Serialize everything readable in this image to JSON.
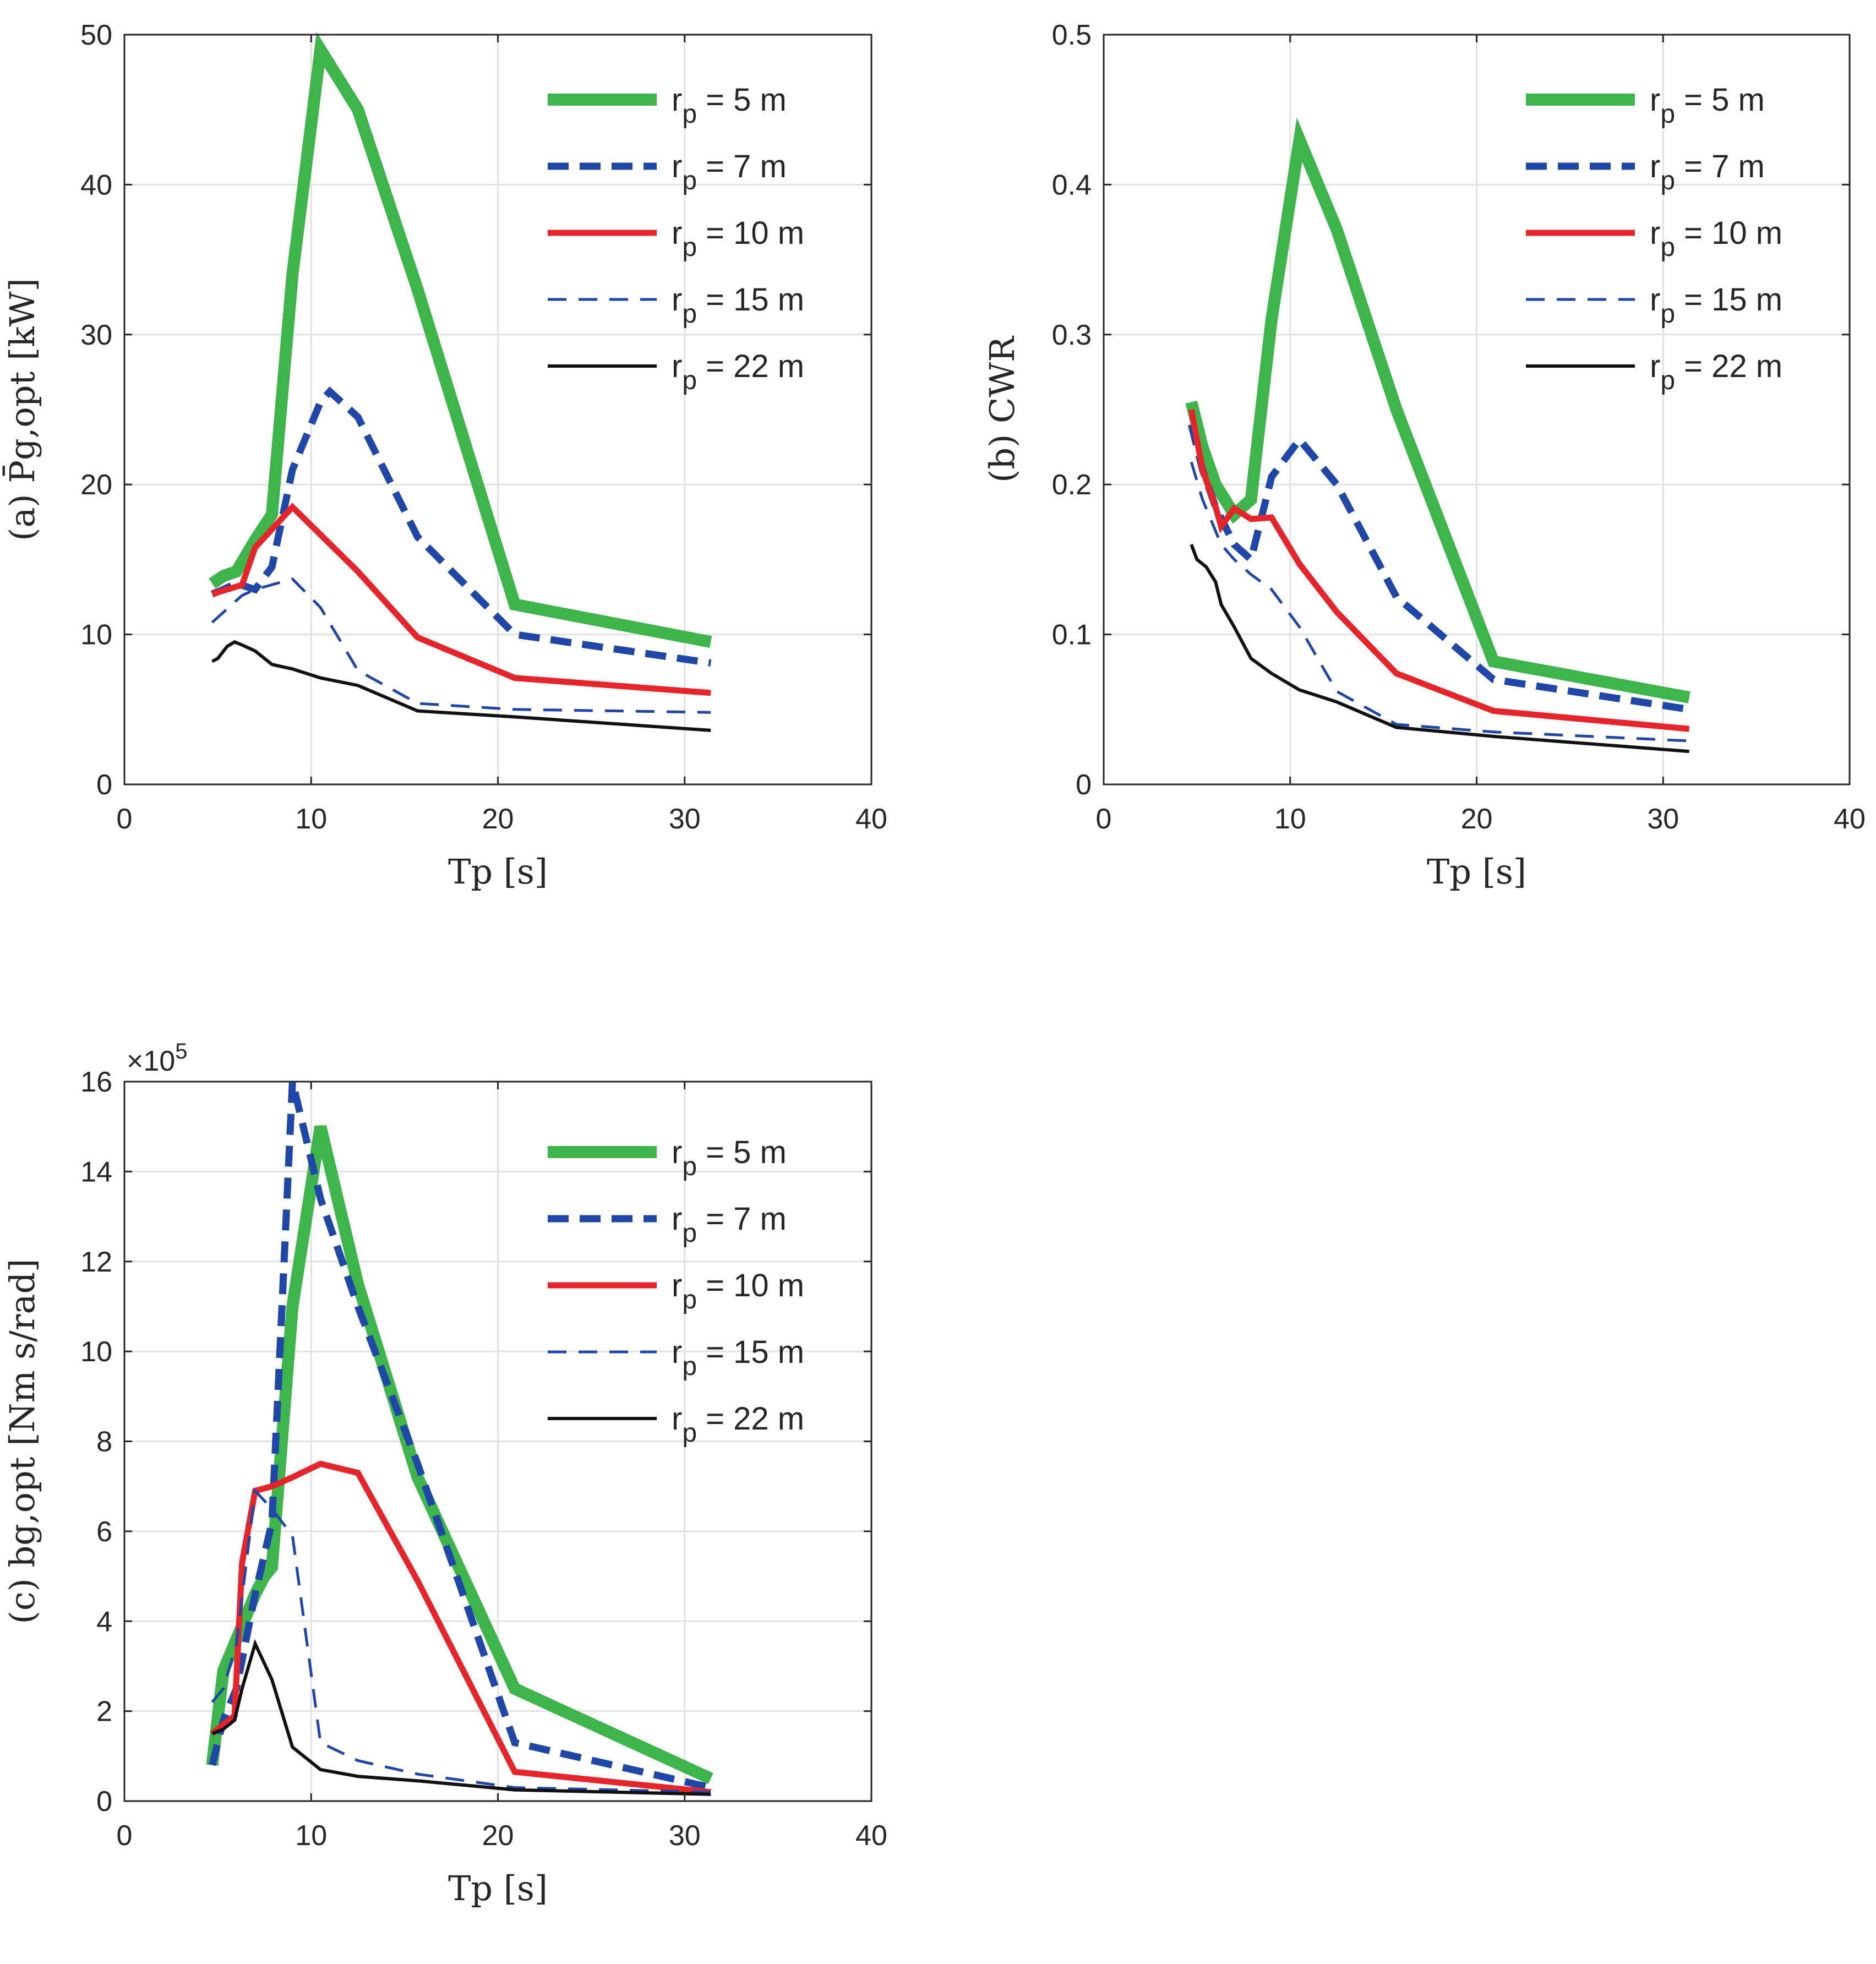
{
  "chart_data": [
    {
      "id": "a",
      "type": "line",
      "ylabel": "(a) P̄g,opt [kW]",
      "xlabel": "Tp [s]",
      "xlim": [
        0,
        40
      ],
      "ylim": [
        0,
        50
      ],
      "xticks": [
        "0",
        "10",
        "20",
        "30",
        "40"
      ],
      "yticks": [
        "0",
        "10",
        "20",
        "30",
        "40",
        "50"
      ],
      "grid": true,
      "legend_position": "top-right",
      "series": [
        {
          "name": "rp = 5 m",
          "color": "#3db54a",
          "style": "thick-solid",
          "x": [
            4.7,
            5.3,
            6.0,
            7.0,
            7.9,
            9.0,
            10.5,
            12.5,
            15.7,
            20.9,
            31.4
          ],
          "y": [
            13.4,
            13.9,
            14.2,
            16.3,
            18.0,
            34.0,
            49.0,
            45.0,
            33.0,
            12.0,
            9.5
          ]
        },
        {
          "name": "rp = 7 m",
          "color": "#1f47a8",
          "style": "thick-dash",
          "x": [
            4.7,
            5.3,
            6.0,
            7.0,
            7.9,
            9.0,
            10.5,
            11.0,
            12.5,
            15.7,
            20.9,
            31.4
          ],
          "y": [
            12.7,
            13.0,
            13.4,
            13.0,
            14.5,
            21.0,
            25.5,
            26.2,
            24.5,
            16.5,
            10.0,
            8.1
          ]
        },
        {
          "name": "rp = 10 m",
          "color": "#e8242b",
          "style": "solid",
          "x": [
            4.7,
            6.3,
            7.0,
            9.0,
            12.5,
            15.7,
            20.9,
            31.4
          ],
          "y": [
            12.7,
            13.3,
            15.8,
            18.5,
            14.2,
            9.8,
            7.1,
            6.1
          ]
        },
        {
          "name": "rp = 15 m",
          "color": "#1f47a8",
          "style": "thin-dash",
          "x": [
            4.7,
            6.3,
            7.0,
            9.0,
            10.5,
            12.5,
            15.7,
            20.9,
            31.4
          ],
          "y": [
            10.8,
            12.6,
            13.0,
            13.7,
            11.8,
            7.6,
            5.4,
            5.0,
            4.8
          ]
        },
        {
          "name": "rp = 22 m",
          "color": "#111111",
          "style": "thin-solid",
          "x": [
            4.7,
            5.0,
            5.5,
            5.9,
            6.3,
            7.0,
            7.9,
            9.0,
            10.5,
            12.5,
            15.7,
            20.9,
            31.4
          ],
          "y": [
            8.2,
            8.4,
            9.2,
            9.5,
            9.3,
            8.9,
            8.0,
            7.7,
            7.1,
            6.6,
            4.9,
            4.5,
            3.6
          ]
        }
      ]
    },
    {
      "id": "b",
      "type": "line",
      "ylabel": "(b) CWR",
      "xlabel": "Tp [s]",
      "xlim": [
        0,
        40
      ],
      "ylim": [
        0,
        0.5
      ],
      "xticks": [
        "0",
        "10",
        "20",
        "30",
        "40"
      ],
      "yticks": [
        "0",
        "0.1",
        "0.2",
        "0.3",
        "0.4",
        "0.5"
      ],
      "grid": true,
      "legend_position": "top-right",
      "series": [
        {
          "name": "rp = 5 m",
          "color": "#3db54a",
          "style": "thick-solid",
          "x": [
            4.7,
            5.3,
            6.0,
            7.0,
            7.9,
            9.0,
            10.5,
            12.5,
            15.7,
            20.9,
            31.4
          ],
          "y": [
            0.255,
            0.225,
            0.2,
            0.18,
            0.19,
            0.31,
            0.43,
            0.37,
            0.25,
            0.082,
            0.058
          ]
        },
        {
          "name": "rp = 7 m",
          "color": "#1f47a8",
          "style": "thick-dash",
          "x": [
            4.7,
            5.3,
            6.0,
            7.0,
            7.9,
            9.0,
            10.5,
            12.5,
            15.7,
            20.9,
            31.4
          ],
          "y": [
            0.24,
            0.21,
            0.185,
            0.16,
            0.15,
            0.205,
            0.23,
            0.2,
            0.125,
            0.07,
            0.05
          ]
        },
        {
          "name": "rp = 10 m",
          "color": "#e8242b",
          "style": "solid",
          "x": [
            4.7,
            5.3,
            6.0,
            6.3,
            7.0,
            7.9,
            9.0,
            10.5,
            12.5,
            15.7,
            20.9,
            31.4
          ],
          "y": [
            0.25,
            0.21,
            0.185,
            0.172,
            0.184,
            0.177,
            0.178,
            0.147,
            0.115,
            0.074,
            0.049,
            0.037
          ]
        },
        {
          "name": "rp = 15 m",
          "color": "#1f47a8",
          "style": "thin-dash",
          "x": [
            4.7,
            5.3,
            6.3,
            7.0,
            7.9,
            9.0,
            10.5,
            12.5,
            15.7,
            20.9,
            31.4
          ],
          "y": [
            0.215,
            0.19,
            0.16,
            0.15,
            0.14,
            0.13,
            0.105,
            0.062,
            0.04,
            0.035,
            0.029
          ]
        },
        {
          "name": "rp = 22 m",
          "color": "#111111",
          "style": "thin-solid",
          "x": [
            4.7,
            5.0,
            5.5,
            6.0,
            6.3,
            7.0,
            7.9,
            9.0,
            10.5,
            12.5,
            15.7,
            20.9,
            31.4
          ],
          "y": [
            0.16,
            0.15,
            0.145,
            0.135,
            0.12,
            0.105,
            0.084,
            0.074,
            0.063,
            0.055,
            0.038,
            0.032,
            0.022
          ]
        }
      ]
    },
    {
      "id": "c",
      "type": "line",
      "ylabel": "(c) bg,opt [Nm s/rad]",
      "xlabel": "Tp [s]",
      "exponent_base": "×10",
      "exponent_power": "5",
      "xlim": [
        0,
        40
      ],
      "ylim": [
        0,
        16
      ],
      "xticks": [
        "0",
        "10",
        "20",
        "30",
        "40"
      ],
      "yticks": [
        "0",
        "2",
        "4",
        "6",
        "8",
        "10",
        "12",
        "14",
        "16"
      ],
      "grid": true,
      "legend_position": "top-right",
      "series": [
        {
          "name": "rp = 5 m",
          "color": "#3db54a",
          "style": "thick-solid",
          "x": [
            4.7,
            5.3,
            6.0,
            7.0,
            7.5,
            7.9,
            9.0,
            10.5,
            12.5,
            15.7,
            20.9,
            31.4
          ],
          "y": [
            0.8,
            2.9,
            3.6,
            4.6,
            5.0,
            5.2,
            11.0,
            15.0,
            11.5,
            7.2,
            2.5,
            0.5
          ]
        },
        {
          "name": "rp = 7 m",
          "color": "#1f47a8",
          "style": "thick-dash",
          "x": [
            4.7,
            5.3,
            6.0,
            7.0,
            7.9,
            9.0,
            10.5,
            12.5,
            15.7,
            20.9,
            31.4
          ],
          "y": [
            0.8,
            1.8,
            2.5,
            4.6,
            6.2,
            16.0,
            13.4,
            11.0,
            7.5,
            1.3,
            0.3
          ]
        },
        {
          "name": "rp = 10 m",
          "color": "#e8242b",
          "style": "solid",
          "x": [
            4.7,
            5.3,
            5.9,
            6.3,
            7.0,
            7.9,
            9.0,
            10.5,
            12.5,
            15.7,
            20.9,
            31.4
          ],
          "y": [
            1.5,
            1.7,
            1.9,
            5.3,
            6.9,
            7.0,
            7.2,
            7.5,
            7.3,
            4.9,
            0.65,
            0.2
          ]
        },
        {
          "name": "rp = 15 m",
          "color": "#1f47a8",
          "style": "thin-dash",
          "x": [
            4.7,
            5.3,
            6.0,
            7.0,
            7.9,
            9.0,
            10.5,
            12.5,
            15.7,
            20.9,
            31.4
          ],
          "y": [
            2.2,
            2.5,
            3.5,
            6.9,
            6.5,
            5.9,
            1.3,
            0.9,
            0.6,
            0.3,
            0.2
          ]
        },
        {
          "name": "rp = 22 m",
          "color": "#111111",
          "style": "thin-solid",
          "x": [
            4.7,
            5.3,
            5.9,
            6.3,
            7.0,
            7.9,
            9.0,
            10.5,
            12.5,
            15.7,
            20.9,
            31.4
          ],
          "y": [
            1.5,
            1.6,
            1.8,
            2.5,
            3.5,
            2.7,
            1.2,
            0.7,
            0.55,
            0.45,
            0.25,
            0.15
          ]
        }
      ]
    }
  ]
}
